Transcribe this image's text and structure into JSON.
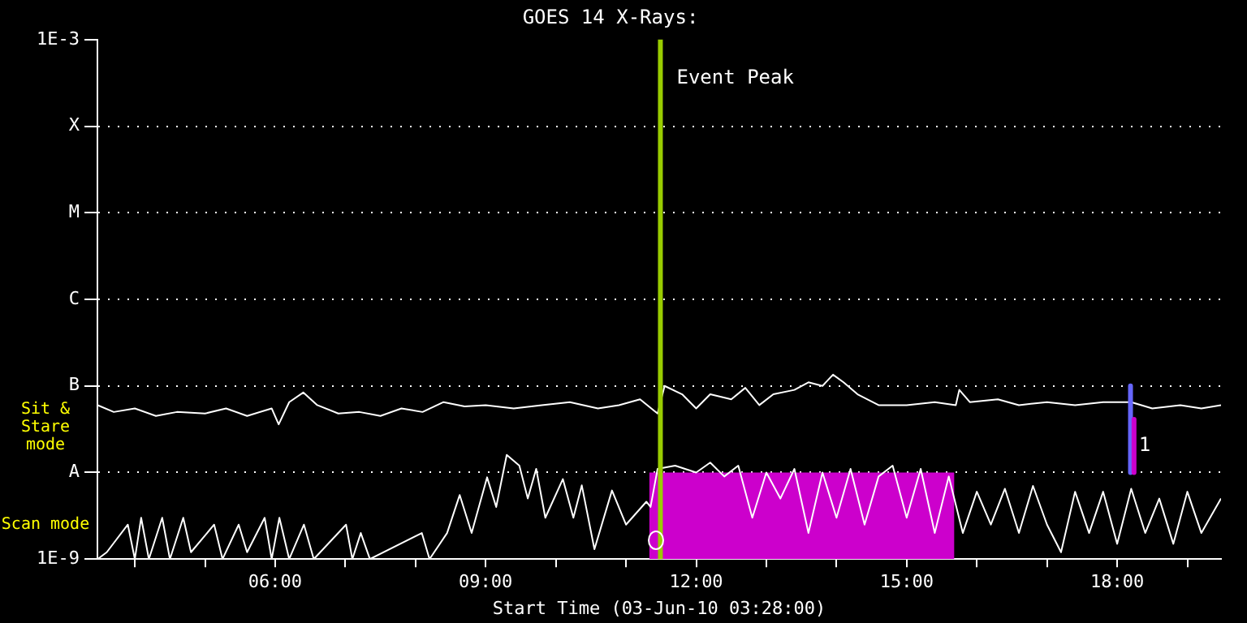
{
  "chart_data": {
    "type": "line",
    "title": "GOES 14 X-Rays:",
    "xlabel": "Start Time (03-Jun-10 03:28:00)",
    "log": true,
    "grid": "y",
    "xlim": [
      3.4667,
      19.48
    ],
    "xticks": [
      {
        "value": 4,
        "label": null
      },
      {
        "value": 5,
        "label": null
      },
      {
        "value": 6,
        "label": "06:00"
      },
      {
        "value": 7,
        "label": null
      },
      {
        "value": 8,
        "label": null
      },
      {
        "value": 9,
        "label": "09:00"
      },
      {
        "value": 10,
        "label": null
      },
      {
        "value": 11,
        "label": null
      },
      {
        "value": 12,
        "label": "12:00"
      },
      {
        "value": 13,
        "label": null
      },
      {
        "value": 14,
        "label": null
      },
      {
        "value": 15,
        "label": "15:00"
      },
      {
        "value": 16,
        "label": null
      },
      {
        "value": 17,
        "label": null
      },
      {
        "value": 18,
        "label": "18:00"
      },
      {
        "value": 19,
        "label": null
      }
    ],
    "ylim": [
      1e-09,
      0.001
    ],
    "yticks": [
      {
        "value": 1e-09,
        "label": "1E-9"
      },
      {
        "value": 1e-08,
        "label": "A"
      },
      {
        "value": 1e-07,
        "label": "B"
      },
      {
        "value": 1e-06,
        "label": "C"
      },
      {
        "value": 1e-05,
        "label": "M"
      },
      {
        "value": 0.0001,
        "label": "X"
      },
      {
        "value": 0.001,
        "label": "1E-3"
      }
    ],
    "series": [
      {
        "type": "area",
        "color": "#cc00cc",
        "x": [
          11.33,
          15.68
        ],
        "values": [
          1e-08,
          1e-08
        ]
      },
      {
        "type": "line",
        "color": "#ffffff",
        "x": [
          3.47,
          3.7,
          4.0,
          4.3,
          4.6,
          5.0,
          5.3,
          5.6,
          5.95,
          6.05,
          6.2,
          6.4,
          6.6,
          6.9,
          7.2,
          7.5,
          7.8,
          8.1,
          8.4,
          8.7,
          9.0,
          9.4,
          9.8,
          10.2,
          10.6,
          10.9,
          11.2,
          11.45,
          11.55,
          11.8,
          12.0,
          12.2,
          12.5,
          12.7,
          12.9,
          13.1,
          13.4,
          13.6,
          13.8,
          13.95,
          14.1,
          14.3,
          14.6,
          15.0,
          15.4,
          15.7,
          15.75,
          15.9,
          16.3,
          16.6,
          17.0,
          17.4,
          17.8,
          18.2,
          18.5,
          18.9,
          19.2,
          19.48
        ],
        "values": [
          6e-08,
          5e-08,
          5.5e-08,
          4.5e-08,
          5e-08,
          4.8e-08,
          5.5e-08,
          4.5e-08,
          5.5e-08,
          3.6e-08,
          6.5e-08,
          8.4e-08,
          6e-08,
          4.8e-08,
          5e-08,
          4.5e-08,
          5.5e-08,
          5e-08,
          6.5e-08,
          5.8e-08,
          6e-08,
          5.5e-08,
          6e-08,
          6.5e-08,
          5.5e-08,
          6e-08,
          7e-08,
          4.8e-08,
          1e-07,
          8e-08,
          5.5e-08,
          8e-08,
          7e-08,
          9.5e-08,
          6e-08,
          8e-08,
          9e-08,
          1.1e-07,
          1e-07,
          1.35e-07,
          1.1e-07,
          8e-08,
          6e-08,
          6e-08,
          6.5e-08,
          6e-08,
          9e-08,
          6.5e-08,
          7e-08,
          6e-08,
          6.5e-08,
          6e-08,
          6.5e-08,
          6.5e-08,
          5.5e-08,
          6e-08,
          5.5e-08,
          6e-08
        ]
      },
      {
        "type": "line",
        "color": "#ffffff",
        "x": [
          3.47,
          3.6,
          3.9,
          4.0,
          4.09,
          4.2,
          4.39,
          4.5,
          4.69,
          4.8,
          5.13,
          5.25,
          5.48,
          5.6,
          5.85,
          5.95,
          6.06,
          6.2,
          6.41,
          6.55,
          7.01,
          7.1,
          7.22,
          7.35,
          8.09,
          8.2,
          8.45,
          8.63,
          8.8,
          9.02,
          9.15,
          9.3,
          9.48,
          9.6,
          9.72,
          9.85,
          10.1,
          10.25,
          10.37,
          10.55,
          10.8,
          11.0,
          11.29,
          11.35,
          11.45,
          11.7,
          12.0,
          12.2,
          12.4,
          12.6,
          12.8,
          13.0,
          13.2,
          13.4,
          13.6,
          13.8,
          14.0,
          14.2,
          14.4,
          14.6,
          14.8,
          15.0,
          15.2,
          15.4,
          15.6,
          15.8,
          16.0,
          16.2,
          16.4,
          16.6,
          16.8,
          17.0,
          17.2,
          17.4,
          17.6,
          17.8,
          18.0,
          18.2,
          18.4,
          18.6,
          18.8,
          19.0,
          19.2,
          19.48
        ],
        "values": [
          1e-09,
          1.2e-09,
          2.5e-09,
          1e-09,
          3e-09,
          1e-09,
          3e-09,
          1e-09,
          3e-09,
          1.2e-09,
          2.5e-09,
          1e-09,
          2.5e-09,
          1.2e-09,
          3e-09,
          1e-09,
          3e-09,
          1e-09,
          2.5e-09,
          1e-09,
          2.5e-09,
          1e-09,
          2e-09,
          1e-09,
          2e-09,
          1e-09,
          2e-09,
          5.5e-09,
          2e-09,
          8.8e-09,
          4e-09,
          1.6e-08,
          1.2e-08,
          5e-09,
          1.1e-08,
          3e-09,
          8.4e-09,
          3e-09,
          7.1e-09,
          1.3e-09,
          6.2e-09,
          2.5e-09,
          4.6e-09,
          4e-09,
          1.1e-08,
          1.2e-08,
          1e-08,
          1.3e-08,
          9e-09,
          1.2e-08,
          3e-09,
          1e-08,
          5e-09,
          1.1e-08,
          2e-09,
          1e-08,
          3e-09,
          1.1e-08,
          2.5e-09,
          9e-09,
          1.2e-08,
          3e-09,
          1.1e-08,
          2e-09,
          9e-09,
          2e-09,
          6e-09,
          2.5e-09,
          6.5e-09,
          2e-09,
          7e-09,
          2.5e-09,
          1.2e-09,
          6e-09,
          2e-09,
          6e-09,
          1.5e-09,
          6.5e-09,
          2e-09,
          5e-09,
          1.5e-09,
          6e-09,
          2e-09,
          5e-09
        ]
      },
      {
        "type": "line",
        "color": "#6666ff",
        "x": [
          18.19,
          18.19
        ],
        "values": [
          1e-07,
          1e-08
        ]
      },
      {
        "type": "line",
        "color": "#cc00cc",
        "x": [
          18.24,
          18.24
        ],
        "values": [
          4.1e-08,
          1e-08
        ]
      }
    ],
    "ref_lines": [
      {
        "axis": "x",
        "value": 11.49,
        "label": "Event Peak",
        "color": "#99cc00"
      }
    ],
    "annotations": [
      "Sit & Stare mode",
      "Scan mode",
      "1"
    ]
  }
}
